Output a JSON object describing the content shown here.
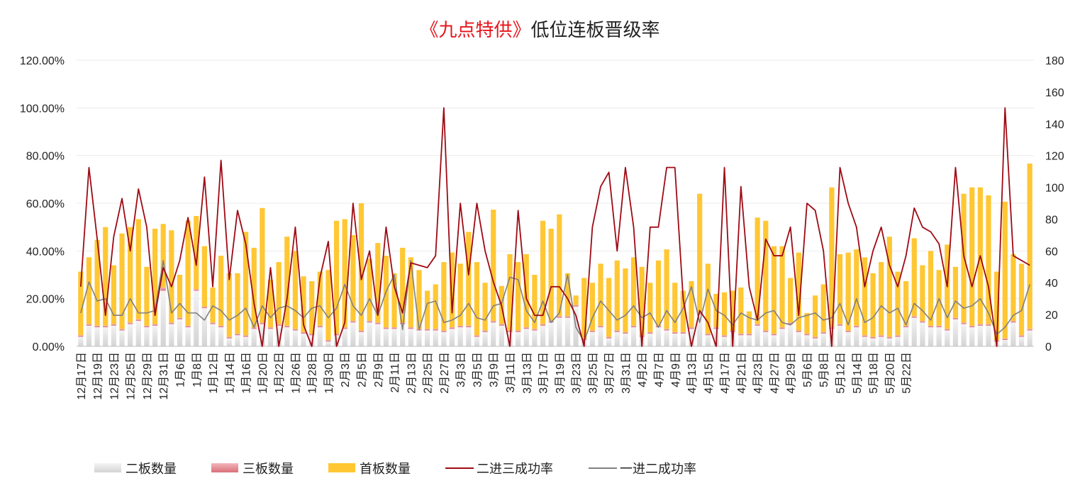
{
  "title": {
    "highlight": "《九点特供》",
    "rest": "低位连板晋级率"
  },
  "colors": {
    "first_board": "#ffc733",
    "second_board": "#e3e3e3",
    "third_board": "#e8919a",
    "rate_2to3": "#9e0a14",
    "rate_1to2": "#808080",
    "title_highlight": "#e8151b"
  },
  "chart_data": {
    "type": "bar+line",
    "title": "《九点特供》低位连板晋级率",
    "left_axis": {
      "min": 0,
      "max": 1.2,
      "step": 0.2,
      "ticks": [
        "0.00%",
        "20.00%",
        "40.00%",
        "60.00%",
        "80.00%",
        "100.00%",
        "120.00%"
      ]
    },
    "right_axis": {
      "min": 0,
      "max": 180,
      "step": 20,
      "ticks": [
        "0",
        "20",
        "40",
        "60",
        "80",
        "100",
        "120",
        "140",
        "160",
        "180"
      ]
    },
    "grid": "horizontal",
    "legend_position": "bottom",
    "x_tick_labels": [
      "12月17日",
      "12月19日",
      "12月23日",
      "12月25日",
      "12月29日",
      "12月31日",
      "1月6日",
      "1月8日",
      "1月12日",
      "1月14日",
      "1月16日",
      "1月20日",
      "1月22日",
      "1月26日",
      "1月28日",
      "1月30日",
      "2月3日",
      "2月5日",
      "2月9日",
      "2月11日",
      "2月13日",
      "2月25日",
      "2月27日",
      "3月3日",
      "3月5日",
      "3月9日",
      "3月11日",
      "3月13日",
      "3月17日",
      "3月19日",
      "3月23日",
      "3月25日",
      "3月27日",
      "3月31日",
      "4月2日",
      "4月7日",
      "4月9日",
      "4月13日",
      "4月15日",
      "4月17日",
      "4月21日",
      "4月23日",
      "4月27日",
      "4月29日",
      "5月6日",
      "5月8日",
      "5月12日",
      "5月14日",
      "5月18日",
      "5月20日",
      "5月22日"
    ],
    "x_tick_every": 2,
    "series": [
      {
        "name": "二板数量",
        "type": "bar-stack",
        "axis": "right",
        "values": [
          6,
          13,
          12,
          12,
          13,
          10,
          14,
          16,
          12,
          13,
          35,
          14,
          17,
          12,
          35,
          24,
          14,
          12,
          5,
          7,
          6,
          11,
          14,
          11,
          13,
          12,
          10,
          8,
          7,
          12,
          3,
          7,
          11,
          15,
          9,
          15,
          14,
          11,
          11,
          14,
          11,
          10,
          10,
          10,
          9,
          11,
          12,
          12,
          6,
          9,
          15,
          13,
          9,
          9,
          11,
          10,
          13,
          15,
          18,
          18,
          25,
          4,
          9,
          12,
          5,
          9,
          8,
          12,
          6,
          8,
          12,
          10,
          8,
          8,
          11,
          20,
          7,
          11,
          6,
          9,
          7,
          7,
          13,
          9,
          7,
          11,
          14,
          9,
          7,
          5,
          8,
          11,
          13,
          9,
          12,
          6,
          5,
          6,
          5,
          6,
          12,
          18,
          15,
          12,
          12,
          10,
          17,
          14,
          12,
          13,
          13,
          3,
          4,
          15,
          6,
          10
        ]
      },
      {
        "name": "三板数量",
        "type": "bar-stack",
        "axis": "right",
        "values": [
          1,
          1,
          1,
          1,
          1,
          1,
          1,
          1,
          1,
          1,
          2,
          1,
          1,
          1,
          1,
          1,
          1,
          1,
          1,
          1,
          1,
          1,
          1,
          1,
          1,
          1,
          1,
          1,
          1,
          1,
          1,
          1,
          1,
          1,
          1,
          1,
          1,
          1,
          1,
          1,
          1,
          1,
          1,
          1,
          1,
          1,
          1,
          1,
          1,
          1,
          1,
          1,
          1,
          1,
          1,
          1,
          1,
          1,
          1,
          1,
          1,
          1,
          1,
          1,
          1,
          1,
          1,
          1,
          1,
          1,
          1,
          1,
          1,
          1,
          1,
          1,
          1,
          1,
          1,
          1,
          1,
          1,
          1,
          1,
          1,
          1,
          1,
          1,
          1,
          1,
          1,
          1,
          1,
          1,
          1,
          1,
          1,
          1,
          1,
          1,
          1,
          1,
          1,
          1,
          1,
          1,
          1,
          1,
          1,
          1,
          1,
          1,
          1,
          1,
          1,
          1
        ]
      },
      {
        "name": "首板数量",
        "type": "bar-stack",
        "axis": "right",
        "values": [
          40,
          42,
          54,
          62,
          37,
          60,
          60,
          63,
          37,
          60,
          40,
          58,
          27,
          66,
          46,
          38,
          22,
          44,
          40,
          38,
          65,
          50,
          72,
          30,
          39,
          56,
          49,
          35,
          33,
          34,
          44,
          71,
          68,
          54,
          80,
          39,
          50,
          45,
          34,
          47,
          44,
          37,
          24,
          28,
          43,
          47,
          39,
          59,
          46,
          30,
          70,
          24,
          48,
          43,
          46,
          34,
          65,
          58,
          64,
          27,
          6,
          38,
          30,
          39,
          37,
          44,
          40,
          43,
          43,
          31,
          41,
          50,
          31,
          26,
          29,
          75,
          44,
          21,
          27,
          25,
          29,
          14,
          67,
          69,
          55,
          51,
          28,
          49,
          13,
          26,
          30,
          88,
          44,
          49,
          48,
          49,
          40,
          46,
          63,
          40,
          28,
          49,
          35,
          47,
          35,
          53,
          32,
          81,
          87,
          86,
          81,
          43,
          86,
          42,
          45,
          104
        ]
      },
      {
        "name": "二进三成功率",
        "type": "line",
        "axis": "left",
        "values": [
          0.25,
          0.75,
          0.45,
          0.13,
          0.46,
          0.62,
          0.4,
          0.66,
          0.5,
          0.13,
          0.33,
          0.25,
          0.36,
          0.54,
          0.34,
          0.71,
          0.25,
          0.78,
          0.28,
          0.57,
          0.43,
          0.18,
          0.0,
          0.33,
          0.0,
          0.2,
          0.5,
          0.09,
          0.0,
          0.29,
          0.44,
          0.0,
          0.1,
          0.6,
          0.28,
          0.4,
          0.13,
          0.5,
          0.25,
          0.14,
          0.35,
          0.34,
          0.33,
          0.38,
          1.0,
          0.14,
          0.6,
          0.3,
          0.6,
          0.4,
          0.27,
          0.17,
          0.0,
          0.57,
          0.2,
          0.13,
          0.13,
          0.25,
          0.25,
          0.2,
          0.13,
          0.0,
          0.5,
          0.67,
          0.73,
          0.4,
          0.75,
          0.5,
          0.0,
          0.5,
          0.5,
          0.75,
          0.75,
          0.2,
          0.0,
          0.15,
          0.1,
          0.0,
          0.75,
          0.0,
          0.67,
          0.25,
          0.11,
          0.45,
          0.38,
          0.38,
          0.5,
          0.13,
          0.6,
          0.57,
          0.4,
          0.0,
          0.75,
          0.6,
          0.5,
          0.25,
          0.4,
          0.5,
          0.34,
          0.25,
          0.38,
          0.58,
          0.5,
          0.48,
          0.43,
          0.25,
          0.75,
          0.38,
          0.25,
          0.38,
          0.25,
          0.0,
          1.0,
          0.38,
          0.36,
          0.34
        ]
      },
      {
        "name": "一进二成功率",
        "type": "line",
        "axis": "left",
        "values": [
          0.14,
          0.27,
          0.19,
          0.2,
          0.13,
          0.13,
          0.2,
          0.14,
          0.14,
          0.15,
          0.36,
          0.14,
          0.18,
          0.14,
          0.14,
          0.11,
          0.17,
          0.15,
          0.11,
          0.13,
          0.16,
          0.08,
          0.17,
          0.12,
          0.16,
          0.17,
          0.15,
          0.12,
          0.16,
          0.17,
          0.12,
          0.16,
          0.26,
          0.17,
          0.13,
          0.2,
          0.13,
          0.23,
          0.3,
          0.07,
          0.36,
          0.07,
          0.18,
          0.19,
          0.1,
          0.11,
          0.13,
          0.18,
          0.12,
          0.11,
          0.17,
          0.18,
          0.29,
          0.28,
          0.15,
          0.1,
          0.19,
          0.1,
          0.14,
          0.3,
          0.08,
          0.02,
          0.12,
          0.19,
          0.15,
          0.11,
          0.13,
          0.17,
          0.12,
          0.14,
          0.08,
          0.15,
          0.1,
          0.16,
          0.25,
          0.1,
          0.24,
          0.15,
          0.13,
          0.09,
          0.14,
          0.12,
          0.11,
          0.14,
          0.15,
          0.1,
          0.09,
          0.12,
          0.13,
          0.14,
          0.11,
          0.12,
          0.18,
          0.09,
          0.2,
          0.1,
          0.12,
          0.17,
          0.14,
          0.16,
          0.09,
          0.18,
          0.15,
          0.11,
          0.2,
          0.12,
          0.19,
          0.16,
          0.17,
          0.2,
          0.14,
          0.05,
          0.08,
          0.13,
          0.15,
          0.26
        ]
      }
    ]
  }
}
